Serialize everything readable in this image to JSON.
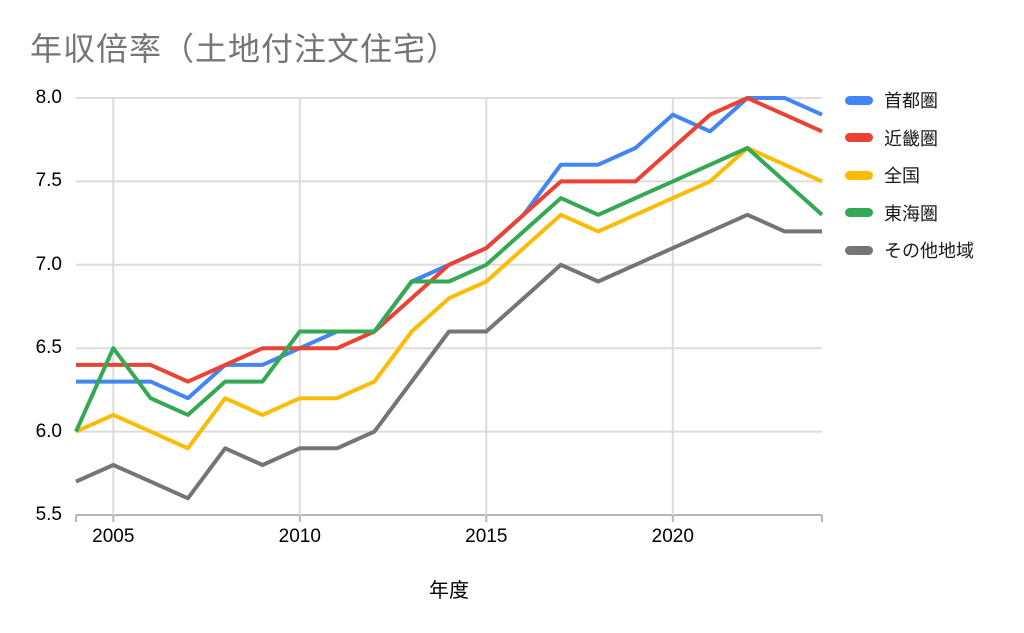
{
  "title": "年収倍率（土地付注文住宅）",
  "chart_data": {
    "type": "line",
    "title": "年収倍率（土地付注文住宅）",
    "xlabel": "年度",
    "ylabel": "",
    "xlim": [
      2004,
      2024
    ],
    "ylim": [
      5.5,
      8.0
    ],
    "grid": true,
    "legend_position": "right",
    "x": [
      2004,
      2005,
      2006,
      2007,
      2008,
      2009,
      2010,
      2011,
      2012,
      2013,
      2014,
      2015,
      2016,
      2017,
      2018,
      2019,
      2020,
      2021,
      2022,
      2023,
      2024
    ],
    "x_tick_values": [
      2005,
      2010,
      2015,
      2020
    ],
    "x_tick_labels": [
      "2005",
      "2010",
      "2015",
      "2020"
    ],
    "y_tick_values": [
      8.0,
      7.5,
      7.0,
      6.5,
      6.0,
      5.5
    ],
    "y_tick_labels": [
      "8.0",
      "7.5",
      "7.0",
      "6.5",
      "6.0",
      "5.5"
    ],
    "series": [
      {
        "name": "首都圏",
        "color": "#4285F4",
        "values": [
          6.3,
          6.3,
          6.3,
          6.2,
          6.4,
          6.4,
          6.5,
          6.6,
          6.6,
          6.9,
          7.0,
          7.1,
          7.3,
          7.6,
          7.6,
          7.7,
          7.9,
          7.8,
          8.0,
          8.0,
          7.9
        ]
      },
      {
        "name": "近畿圏",
        "color": "#EA4335",
        "values": [
          6.4,
          6.4,
          6.4,
          6.3,
          6.4,
          6.5,
          6.5,
          6.5,
          6.6,
          6.8,
          7.0,
          7.1,
          7.3,
          7.5,
          7.5,
          7.5,
          7.7,
          7.9,
          8.0,
          7.9,
          7.8
        ]
      },
      {
        "name": "全国",
        "color": "#FBBC04",
        "values": [
          6.0,
          6.1,
          6.0,
          5.9,
          6.2,
          6.1,
          6.2,
          6.2,
          6.3,
          6.6,
          6.8,
          6.9,
          7.1,
          7.3,
          7.2,
          7.3,
          7.4,
          7.5,
          7.7,
          7.6,
          7.5
        ]
      },
      {
        "name": "東海圏",
        "color": "#34A853",
        "values": [
          6.0,
          6.5,
          6.2,
          6.1,
          6.3,
          6.3,
          6.6,
          6.6,
          6.6,
          6.9,
          6.9,
          7.0,
          7.2,
          7.4,
          7.3,
          7.4,
          7.5,
          7.6,
          7.7,
          7.5,
          7.3
        ]
      },
      {
        "name": "その他地域",
        "color": "#757575",
        "values": [
          5.7,
          5.8,
          5.7,
          5.6,
          5.9,
          5.8,
          5.9,
          5.9,
          6.0,
          6.3,
          6.6,
          6.6,
          6.8,
          7.0,
          6.9,
          7.0,
          7.1,
          7.2,
          7.3,
          7.2,
          7.2
        ]
      }
    ]
  },
  "colors": {
    "background": "#ffffff",
    "title_text": "#757575",
    "axis_text": "#000000",
    "gridline": "#dcdcdc",
    "axis_line": "#b7b7b7"
  }
}
